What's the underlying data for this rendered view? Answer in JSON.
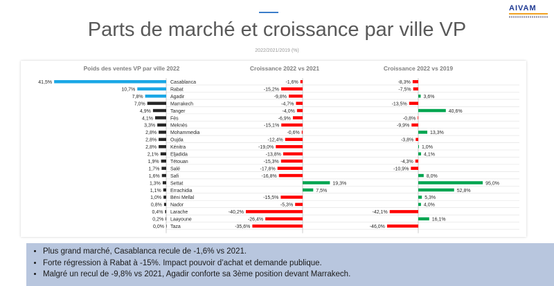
{
  "header": {
    "title": "Parts de marché et croissance par ville VP",
    "subtitle": "2022/2021/2019 (%)",
    "logo_text": "AIVAM"
  },
  "chart_data": {
    "type": "bar",
    "categories": [
      "Casablanca",
      "Rabat",
      "Agadir",
      "Marrakech",
      "Tanger",
      "Fès",
      "Meknès",
      "Mohammedia",
      "Oujda",
      "Kénitra",
      "Eljadida",
      "Tétouan",
      "Salé",
      "Safi",
      "Settat",
      "Errachidia",
      "Béni Mellal",
      "Nador",
      "Larache",
      "Laayoune",
      "Taza"
    ],
    "series": [
      {
        "name": "Poids des ventes VP par ville 2022",
        "values": [
          41.5,
          10.7,
          7.8,
          7.0,
          4.9,
          4.1,
          3.3,
          2.8,
          2.8,
          2.8,
          2.1,
          1.9,
          1.7,
          1.6,
          1.3,
          1.1,
          1.0,
          0.8,
          0.4,
          0.2,
          0.0
        ],
        "labels": [
          "41,5%",
          "10,7%",
          "7,8%",
          "7,0%",
          "4,9%",
          "4,1%",
          "3,3%",
          "2,8%",
          "2,8%",
          "2,8%",
          "2,1%",
          "1,9%",
          "1,7%",
          "1,6%",
          "1,3%",
          "1,1%",
          "1,0%",
          "0,8%",
          "0,4%",
          "0,2%",
          "0,0%"
        ]
      },
      {
        "name": "Croissance 2022 vs 2021",
        "values": [
          -1.6,
          -15.2,
          -9.8,
          -4.7,
          -4.0,
          -6.9,
          -15.1,
          -0.6,
          -12.4,
          -19.0,
          -13.8,
          -15.3,
          -17.8,
          -16.8,
          19.3,
          7.5,
          -15.5,
          -5.3,
          -40.2,
          -26.4,
          -35.6
        ],
        "labels": [
          "-1,6%",
          "-15,2%",
          "-9,8%",
          "-4,7%",
          "-4,0%",
          "-6,9%",
          "-15,1%",
          "-0,6%",
          "-12,4%",
          "-19,0%",
          "-13,8%",
          "-15,3%",
          "-17,8%",
          "-16,8%",
          "19,3%",
          "7,5%",
          "-15,5%",
          "-5,3%",
          "-40,2%",
          "-26,4%",
          "-35,6%"
        ]
      },
      {
        "name": "Croissance 2022 vs 2019",
        "values": [
          -8.3,
          -7.5,
          3.6,
          -13.5,
          40.6,
          -0.8,
          -9.9,
          13.3,
          -3.8,
          1.0,
          4.1,
          -4.3,
          -10.9,
          8.0,
          95.0,
          52.8,
          5.3,
          4.0,
          -42.1,
          16.1,
          -46.0
        ],
        "labels": [
          "-8,3%",
          "-7,5%",
          "3,6%",
          "-13,5%",
          "40,6%",
          "-0,8%",
          "-9,9%",
          "13,3%",
          "-3,8%",
          "1,0%",
          "4,1%",
          "-4,3%",
          "-10,9%",
          "8,0%",
          "95,0%",
          "52,8%",
          "5,3%",
          "4,0%",
          "-42,1%",
          "16,1%",
          "-46,0%"
        ]
      }
    ],
    "colors": {
      "highlight": "#1aa7e6",
      "weight": "#262626",
      "negative": "#ff0000",
      "positive": "#00a550"
    }
  },
  "notes": [
    "Plus grand marché, Casablanca recule de -1,6% vs 2021.",
    "Forte régression à Rabat à -15%. Impact pouvoir d’achat et demande publique.",
    "Malgré un recul de -9,8% vs 2021, Agadir conforte sa 3ème position devant Marrakech."
  ]
}
